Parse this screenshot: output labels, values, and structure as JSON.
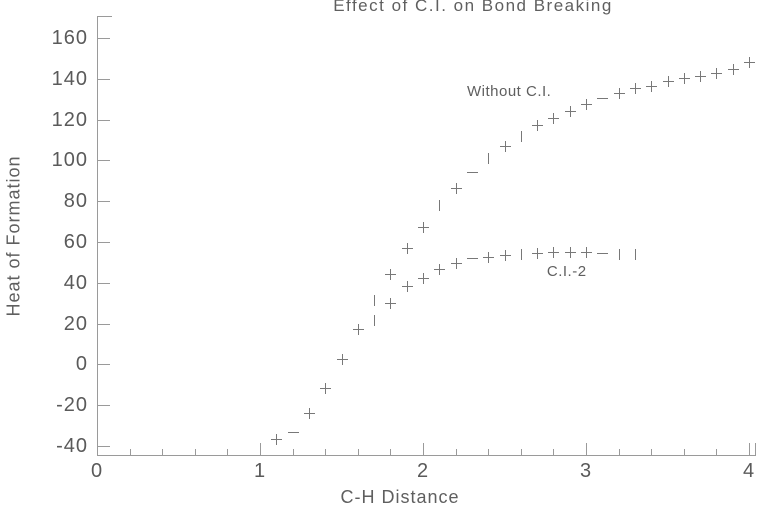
{
  "window": {
    "background": "#ffffff"
  },
  "colors": {
    "axis": "#9a9a9a",
    "marker": "#787878",
    "text": "#5a5a5a"
  },
  "chart_data": {
    "type": "scatter",
    "title": "Effect of C.I. on Bond Breaking",
    "xlabel": "C-H Distance",
    "ylabel": "Heat of Formation",
    "xlim": [
      0,
      4
    ],
    "ylim": [
      -40,
      160
    ],
    "x_ticks": [
      0,
      1,
      2,
      3,
      4
    ],
    "x_minor_step": 0.2,
    "y_ticks": [
      -40,
      -20,
      0,
      20,
      40,
      60,
      80,
      100,
      120,
      140,
      160
    ],
    "grid": false,
    "legend_position": "inline-annotations",
    "marker": "plus",
    "series": [
      {
        "name": "Without C.I.",
        "x": [
          1.1,
          1.2,
          1.3,
          1.4,
          1.5,
          1.6,
          1.7,
          1.8,
          1.9,
          2.0,
          2.1,
          2.2,
          2.3,
          2.4,
          2.5,
          2.6,
          2.7,
          2.8,
          2.9,
          3.0,
          3.1,
          3.2,
          3.3,
          3.4,
          3.5,
          3.6,
          3.7,
          3.8,
          3.9,
          4.0
        ],
        "y": [
          -36.5,
          -33,
          -24,
          -11.5,
          2.5,
          17.5,
          31.5,
          44.5,
          57,
          67.5,
          78,
          86.5,
          94.5,
          101,
          107,
          112,
          117.5,
          121,
          124,
          127.5,
          130.5,
          133,
          135.5,
          136.5,
          139,
          140.5,
          141.5,
          143,
          145,
          148
        ],
        "glyphs": [
          "+",
          "-",
          "+",
          "+",
          "+",
          "+",
          "|",
          "+",
          "+",
          "+",
          "|",
          "+",
          "-",
          "|",
          "+",
          "|",
          "+",
          "+",
          "+",
          "+",
          "-",
          "+",
          "+",
          "+",
          "+",
          "+",
          "+",
          "+",
          "+",
          "+"
        ]
      },
      {
        "name": "C.I.-2",
        "x": [
          1.7,
          1.8,
          1.9,
          2.0,
          2.1,
          2.2,
          2.3,
          2.4,
          2.5,
          2.6,
          2.7,
          2.8,
          2.9,
          3.0,
          3.1,
          3.2,
          3.3
        ],
        "y": [
          22,
          30,
          38.5,
          42.5,
          47,
          49.5,
          52,
          52.5,
          53.5,
          54,
          54.5,
          55,
          55,
          55,
          54.5,
          54,
          54
        ],
        "glyphs": [
          "|",
          "+",
          "+",
          "+",
          "+",
          "+",
          "-",
          "+",
          "+",
          "|",
          "+",
          "+",
          "+",
          "+",
          "-",
          "|",
          "|"
        ]
      }
    ],
    "annotations": [
      {
        "text": "Without C.I.",
        "x": 2.27,
        "y": 133.5
      },
      {
        "text": "C.I.-2",
        "x": 2.76,
        "y": 45.5
      }
    ]
  }
}
